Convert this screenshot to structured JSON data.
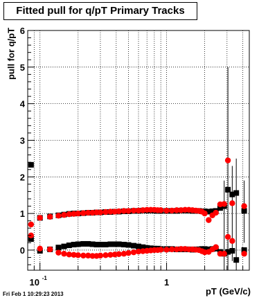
{
  "chart_data": {
    "type": "scatter",
    "title": "Fitted pull for q/pT  Primary Tracks",
    "xlabel": "pT (GeV/c)",
    "ylabel": "pull for q/pT",
    "x_scale": "log",
    "xlim": [
      0.08,
      4.5
    ],
    "ylim": [
      -0.55,
      6
    ],
    "grid": true,
    "y_ticks": [
      0,
      1,
      2,
      3,
      4,
      5,
      6
    ],
    "x_tick_labels": [
      {
        "value": 0.1,
        "base": "10",
        "exp": "-1"
      },
      {
        "value": 1,
        "base": "1",
        "exp": ""
      }
    ],
    "series": [
      {
        "color": "#000000",
        "points": [
          {
            "x": 0.085,
            "y": 2.33
          },
          {
            "x": 0.085,
            "y": 0.3
          },
          {
            "x": 0.1,
            "y": 0.88
          },
          {
            "x": 0.1,
            "y": -0.02
          },
          {
            "x": 0.12,
            "y": 0.92
          },
          {
            "x": 0.12,
            "y": 0.02
          },
          {
            "x": 0.14,
            "y": 0.95
          },
          {
            "x": 0.14,
            "y": 0.07
          },
          {
            "x": 0.155,
            "y": 0.97
          },
          {
            "x": 0.155,
            "y": 0.1
          },
          {
            "x": 0.17,
            "y": 0.99
          },
          {
            "x": 0.17,
            "y": 0.13
          },
          {
            "x": 0.185,
            "y": 1.0
          },
          {
            "x": 0.185,
            "y": 0.15
          },
          {
            "x": 0.2,
            "y": 1.0
          },
          {
            "x": 0.2,
            "y": 0.16
          },
          {
            "x": 0.22,
            "y": 1.01
          },
          {
            "x": 0.22,
            "y": 0.17
          },
          {
            "x": 0.24,
            "y": 1.02
          },
          {
            "x": 0.24,
            "y": 0.17
          },
          {
            "x": 0.26,
            "y": 1.02
          },
          {
            "x": 0.26,
            "y": 0.16
          },
          {
            "x": 0.28,
            "y": 1.03
          },
          {
            "x": 0.28,
            "y": 0.15
          },
          {
            "x": 0.3,
            "y": 1.03
          },
          {
            "x": 0.3,
            "y": 0.15
          },
          {
            "x": 0.33,
            "y": 1.04
          },
          {
            "x": 0.33,
            "y": 0.15
          },
          {
            "x": 0.36,
            "y": 1.04
          },
          {
            "x": 0.36,
            "y": 0.16
          },
          {
            "x": 0.39,
            "y": 1.05
          },
          {
            "x": 0.39,
            "y": 0.16
          },
          {
            "x": 0.42,
            "y": 1.05
          },
          {
            "x": 0.42,
            "y": 0.16
          },
          {
            "x": 0.46,
            "y": 1.06
          },
          {
            "x": 0.46,
            "y": 0.15
          },
          {
            "x": 0.5,
            "y": 1.06
          },
          {
            "x": 0.5,
            "y": 0.14
          },
          {
            "x": 0.55,
            "y": 1.07
          },
          {
            "x": 0.55,
            "y": 0.12
          },
          {
            "x": 0.6,
            "y": 1.07
          },
          {
            "x": 0.6,
            "y": 0.1
          },
          {
            "x": 0.65,
            "y": 1.08
          },
          {
            "x": 0.65,
            "y": 0.08
          },
          {
            "x": 0.7,
            "y": 1.08
          },
          {
            "x": 0.7,
            "y": 0.06
          },
          {
            "x": 0.75,
            "y": 1.08
          },
          {
            "x": 0.75,
            "y": 0.05
          },
          {
            "x": 0.8,
            "y": 1.08
          },
          {
            "x": 0.8,
            "y": 0.04
          },
          {
            "x": 0.85,
            "y": 1.07
          },
          {
            "x": 0.85,
            "y": 0.04
          },
          {
            "x": 0.9,
            "y": 1.07
          },
          {
            "x": 0.9,
            "y": 0.03
          },
          {
            "x": 1.0,
            "y": 1.07
          },
          {
            "x": 1.0,
            "y": 0.03
          },
          {
            "x": 1.1,
            "y": 1.07
          },
          {
            "x": 1.1,
            "y": 0.03
          },
          {
            "x": 1.2,
            "y": 1.07
          },
          {
            "x": 1.2,
            "y": 0.02
          },
          {
            "x": 1.3,
            "y": 1.08
          },
          {
            "x": 1.3,
            "y": 0.02
          },
          {
            "x": 1.4,
            "y": 1.08
          },
          {
            "x": 1.4,
            "y": 0.02
          },
          {
            "x": 1.5,
            "y": 1.08
          },
          {
            "x": 1.5,
            "y": 0.02
          },
          {
            "x": 1.6,
            "y": 1.07
          },
          {
            "x": 1.6,
            "y": 0.01
          },
          {
            "x": 1.7,
            "y": 1.07
          },
          {
            "x": 1.7,
            "y": 0.02
          },
          {
            "x": 1.8,
            "y": 1.07
          },
          {
            "x": 1.8,
            "y": 0.02
          },
          {
            "x": 1.9,
            "y": 1.06
          },
          {
            "x": 1.9,
            "y": 0.03
          },
          {
            "x": 2.0,
            "y": 1.06
          },
          {
            "x": 2.0,
            "y": 0.03
          },
          {
            "x": 2.15,
            "y": 1.05
          },
          {
            "x": 2.15,
            "y": 0.02
          },
          {
            "x": 2.3,
            "y": 1.06
          },
          {
            "x": 2.3,
            "y": 0.03
          },
          {
            "x": 2.45,
            "y": 1.07
          },
          {
            "x": 2.45,
            "y": 0.04
          },
          {
            "x": 2.65,
            "y": 1.15
          },
          {
            "x": 2.65,
            "y": -0.05
          },
          {
            "x": 2.85,
            "y": 1.2
          },
          {
            "x": 2.85,
            "y": -0.1
          },
          {
            "x": 3.05,
            "y": 1.65
          },
          {
            "x": 3.05,
            "y": -0.05
          },
          {
            "x": 3.3,
            "y": 1.52
          },
          {
            "x": 3.3,
            "y": -0.02
          },
          {
            "x": 3.55,
            "y": 1.56
          },
          {
            "x": 3.55,
            "y": -0.27
          },
          {
            "x": 4.1,
            "y": 1.07
          },
          {
            "x": 4.1,
            "y": 0.0
          }
        ]
      },
      {
        "color": "#ff0000",
        "points": [
          {
            "x": 0.085,
            "y": 0.7
          },
          {
            "x": 0.085,
            "y": 0.4
          },
          {
            "x": 0.1,
            "y": 0.88
          },
          {
            "x": 0.1,
            "y": 0.04
          },
          {
            "x": 0.12,
            "y": 0.91
          },
          {
            "x": 0.12,
            "y": 0.02
          },
          {
            "x": 0.14,
            "y": 0.94
          },
          {
            "x": 0.14,
            "y": -0.07
          },
          {
            "x": 0.155,
            "y": 0.96
          },
          {
            "x": 0.155,
            "y": -0.1
          },
          {
            "x": 0.17,
            "y": 0.98
          },
          {
            "x": 0.17,
            "y": -0.12
          },
          {
            "x": 0.185,
            "y": 0.99
          },
          {
            "x": 0.185,
            "y": -0.13
          },
          {
            "x": 0.2,
            "y": 1.0
          },
          {
            "x": 0.2,
            "y": -0.14
          },
          {
            "x": 0.22,
            "y": 1.01
          },
          {
            "x": 0.22,
            "y": -0.15
          },
          {
            "x": 0.24,
            "y": 1.02
          },
          {
            "x": 0.24,
            "y": -0.15
          },
          {
            "x": 0.26,
            "y": 1.02
          },
          {
            "x": 0.26,
            "y": -0.16
          },
          {
            "x": 0.28,
            "y": 1.03
          },
          {
            "x": 0.28,
            "y": -0.16
          },
          {
            "x": 0.3,
            "y": 1.03
          },
          {
            "x": 0.3,
            "y": -0.15
          },
          {
            "x": 0.33,
            "y": 1.04
          },
          {
            "x": 0.33,
            "y": -0.14
          },
          {
            "x": 0.36,
            "y": 1.05
          },
          {
            "x": 0.36,
            "y": -0.13
          },
          {
            "x": 0.39,
            "y": 1.05
          },
          {
            "x": 0.39,
            "y": -0.12
          },
          {
            "x": 0.42,
            "y": 1.06
          },
          {
            "x": 0.42,
            "y": -0.11
          },
          {
            "x": 0.46,
            "y": 1.07
          },
          {
            "x": 0.46,
            "y": -0.1
          },
          {
            "x": 0.5,
            "y": 1.07
          },
          {
            "x": 0.5,
            "y": -0.08
          },
          {
            "x": 0.55,
            "y": 1.08
          },
          {
            "x": 0.55,
            "y": -0.06
          },
          {
            "x": 0.6,
            "y": 1.08
          },
          {
            "x": 0.6,
            "y": -0.04
          },
          {
            "x": 0.65,
            "y": 1.09
          },
          {
            "x": 0.65,
            "y": -0.03
          },
          {
            "x": 0.7,
            "y": 1.1
          },
          {
            "x": 0.7,
            "y": -0.02
          },
          {
            "x": 0.75,
            "y": 1.1
          },
          {
            "x": 0.75,
            "y": -0.01
          },
          {
            "x": 0.8,
            "y": 1.1
          },
          {
            "x": 0.8,
            "y": 0.0
          },
          {
            "x": 0.85,
            "y": 1.09
          },
          {
            "x": 0.85,
            "y": 0.0
          },
          {
            "x": 0.9,
            "y": 1.09
          },
          {
            "x": 0.9,
            "y": 0.01
          },
          {
            "x": 1.0,
            "y": 1.08
          },
          {
            "x": 1.0,
            "y": 0.01
          },
          {
            "x": 1.1,
            "y": 1.08
          },
          {
            "x": 1.1,
            "y": 0.02
          },
          {
            "x": 1.2,
            "y": 1.09
          },
          {
            "x": 1.2,
            "y": 0.02
          },
          {
            "x": 1.3,
            "y": 1.09
          },
          {
            "x": 1.3,
            "y": 0.03
          },
          {
            "x": 1.4,
            "y": 1.1
          },
          {
            "x": 1.4,
            "y": 0.03
          },
          {
            "x": 1.5,
            "y": 1.1
          },
          {
            "x": 1.5,
            "y": 0.02
          },
          {
            "x": 1.6,
            "y": 1.09
          },
          {
            "x": 1.6,
            "y": 0.02
          },
          {
            "x": 1.7,
            "y": 1.08
          },
          {
            "x": 1.7,
            "y": 0.01
          },
          {
            "x": 1.8,
            "y": 1.07
          },
          {
            "x": 1.8,
            "y": 0.0
          },
          {
            "x": 1.9,
            "y": 1.05
          },
          {
            "x": 1.9,
            "y": -0.03
          },
          {
            "x": 2.0,
            "y": 1.0
          },
          {
            "x": 2.0,
            "y": -0.06
          },
          {
            "x": 2.15,
            "y": 0.82
          },
          {
            "x": 2.15,
            "y": -0.05
          },
          {
            "x": 2.3,
            "y": 0.95
          },
          {
            "x": 2.3,
            "y": 0.02
          },
          {
            "x": 2.45,
            "y": 1.02
          },
          {
            "x": 2.45,
            "y": 0.08
          },
          {
            "x": 2.65,
            "y": 1.25
          },
          {
            "x": 2.65,
            "y": -0.1
          },
          {
            "x": 2.85,
            "y": 1.26
          },
          {
            "x": 2.85,
            "y": -0.1
          },
          {
            "x": 3.05,
            "y": 2.45
          },
          {
            "x": 3.05,
            "y": 0.36
          },
          {
            "x": 3.3,
            "y": 1.28
          },
          {
            "x": 3.3,
            "y": 0.25
          },
          {
            "x": 4.1,
            "y": 1.2
          },
          {
            "x": 4.1,
            "y": -0.1
          }
        ]
      }
    ],
    "error_bars": [
      {
        "x": 2.85,
        "y_low": -0.55,
        "y_high": 1.9
      },
      {
        "x": 3.05,
        "y_low": -0.55,
        "y_high": 5.0
      },
      {
        "x": 3.3,
        "y_low": -0.3,
        "y_high": 2.3
      },
      {
        "x": 3.55,
        "y_low": -0.55,
        "y_high": 2.5
      },
      {
        "x": 4.1,
        "y_low": 0.2,
        "y_high": 1.9
      }
    ]
  },
  "footer": {
    "timestamp": "Fri Feb  1 10:29:23 2013"
  }
}
